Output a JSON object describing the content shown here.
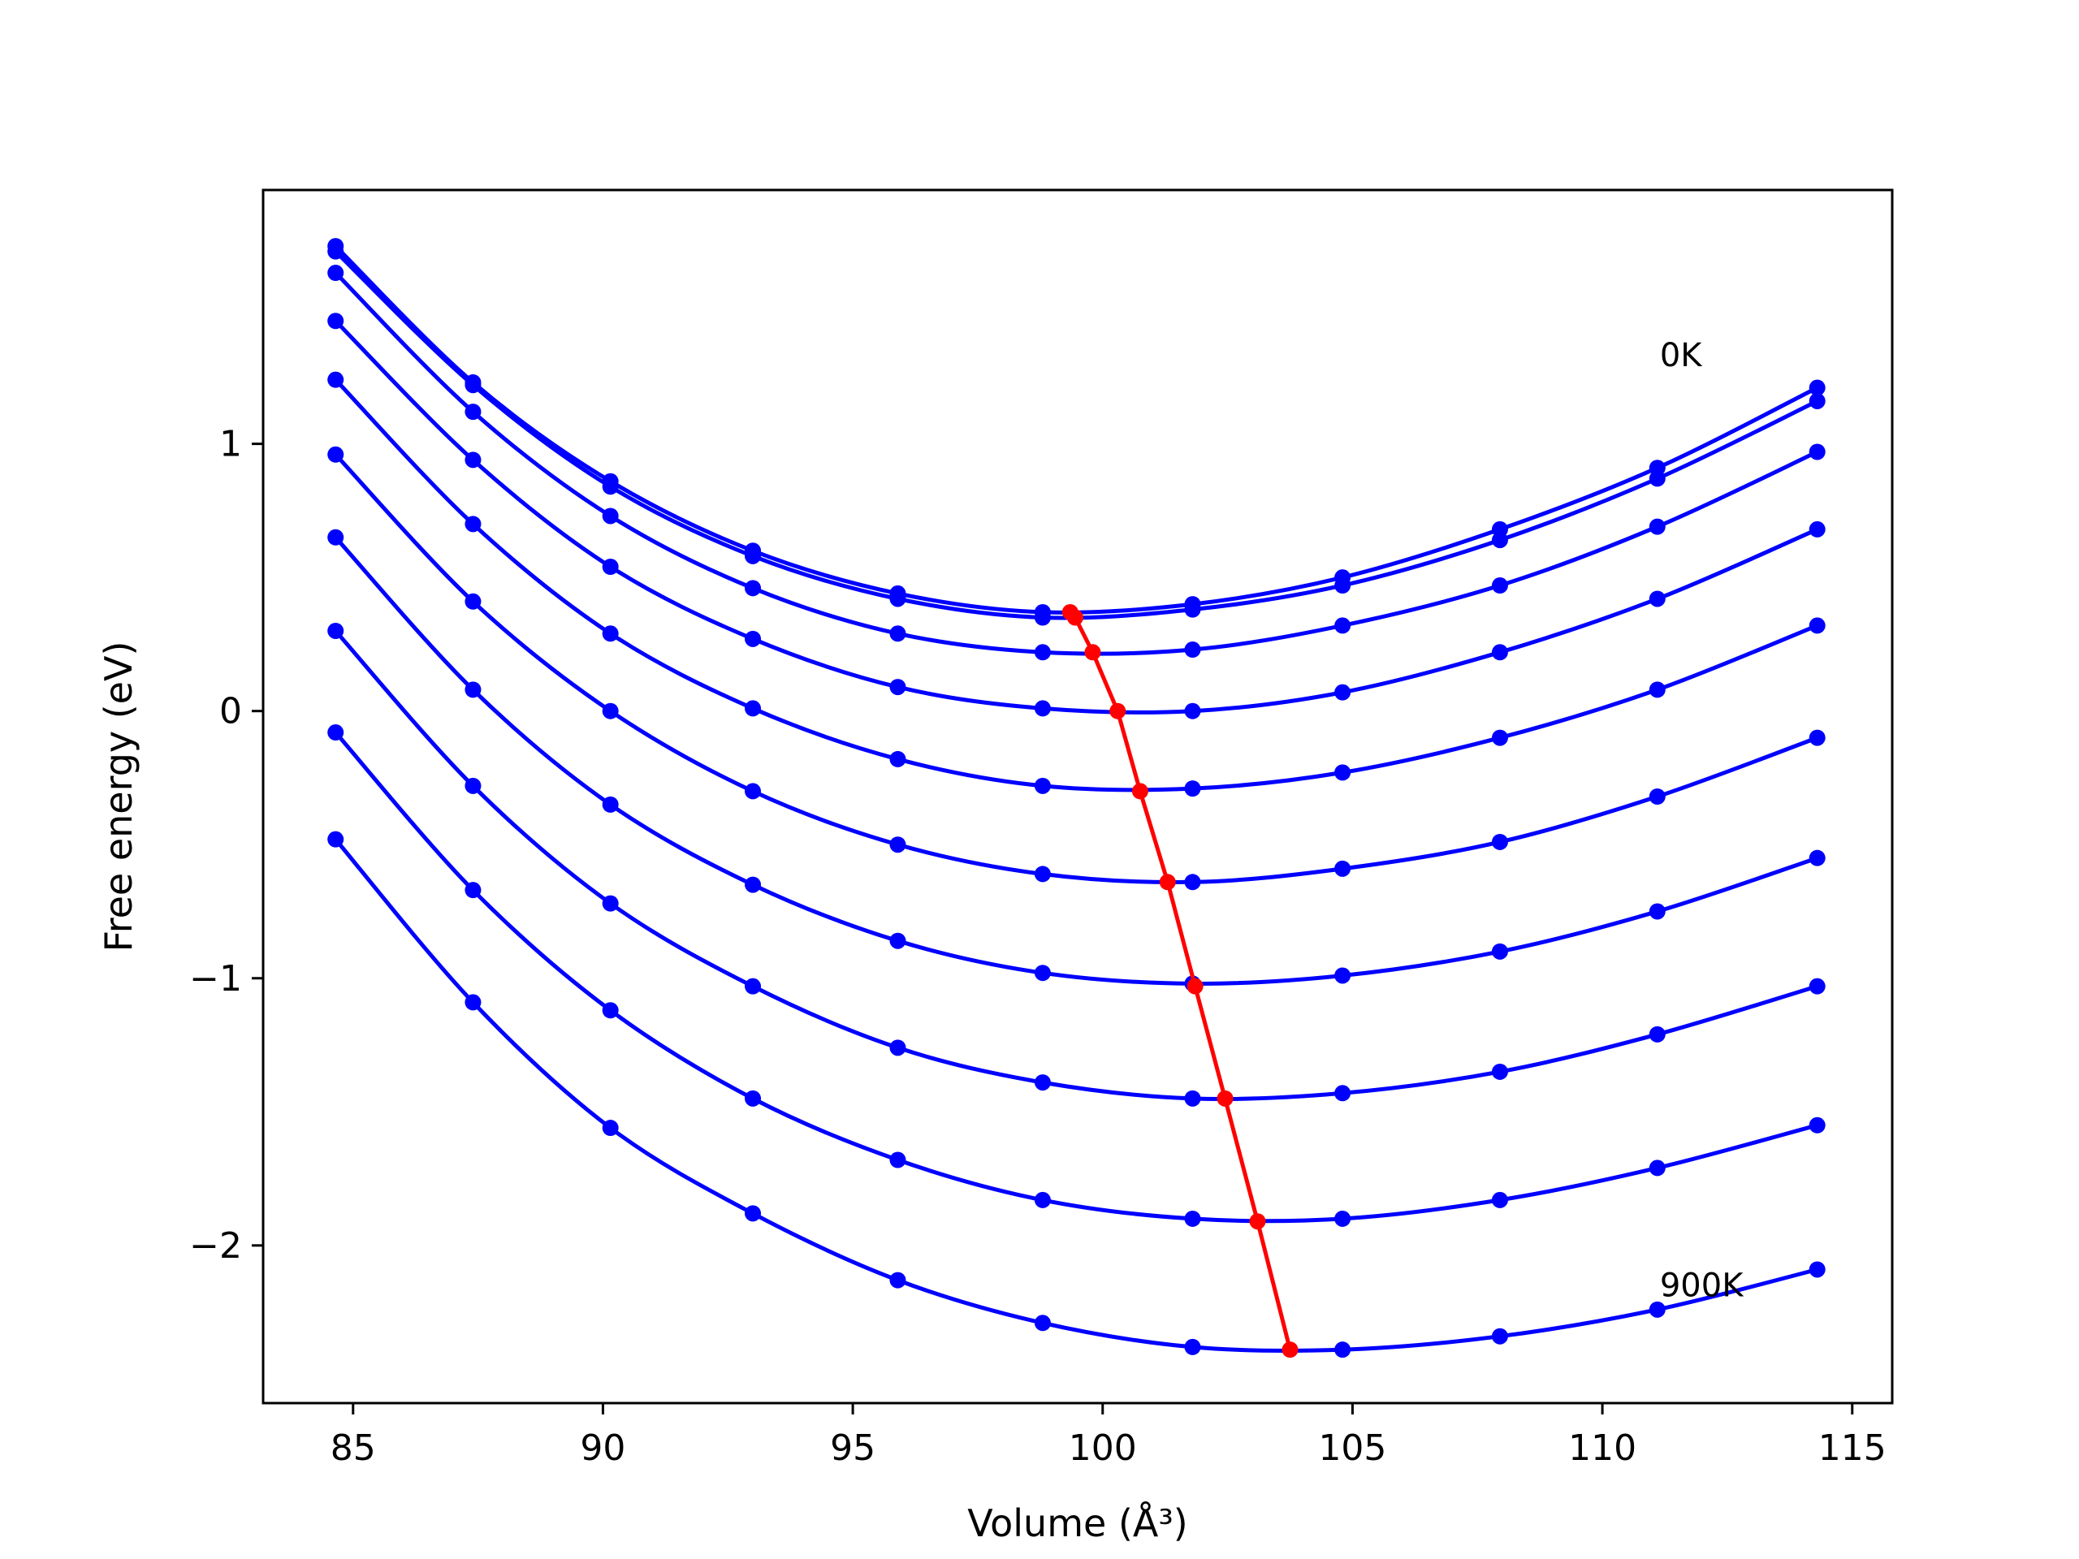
{
  "chart_data": {
    "type": "line",
    "xlabel": "Volume (Å³)",
    "ylabel": "Free energy (eV)",
    "xlim": [
      83.2,
      115.8
    ],
    "ylim": [
      -2.59,
      1.95
    ],
    "xticks": [
      85,
      90,
      95,
      100,
      105,
      110,
      115
    ],
    "xtick_labels": [
      "85",
      "90",
      "95",
      "100",
      "105",
      "110",
      "115"
    ],
    "yticks": [
      1,
      0,
      -1,
      -2
    ],
    "ytick_labels": [
      "1",
      "0",
      "−1",
      "−2"
    ],
    "grid": false,
    "x": [
      84.65,
      87.4,
      90.15,
      93.0,
      95.9,
      98.8,
      101.8,
      104.8,
      107.95,
      111.1,
      114.3
    ],
    "series": [
      {
        "color": "#0000ff",
        "values": [
          1.74,
          1.23,
          0.86,
          0.6,
          0.44,
          0.37,
          0.4,
          0.5,
          0.68,
          0.91,
          1.21
        ]
      },
      {
        "color": "#0000ff",
        "values": [
          1.72,
          1.22,
          0.84,
          0.58,
          0.42,
          0.35,
          0.38,
          0.47,
          0.64,
          0.87,
          1.16
        ]
      },
      {
        "color": "#0000ff",
        "values": [
          1.64,
          1.12,
          0.73,
          0.46,
          0.29,
          0.22,
          0.23,
          0.32,
          0.47,
          0.69,
          0.97
        ]
      },
      {
        "color": "#0000ff",
        "values": [
          1.46,
          0.94,
          0.54,
          0.27,
          0.09,
          0.01,
          0.0,
          0.07,
          0.22,
          0.42,
          0.68
        ]
      },
      {
        "color": "#0000ff",
        "values": [
          1.24,
          0.7,
          0.29,
          0.01,
          -0.18,
          -0.28,
          -0.29,
          -0.23,
          -0.1,
          0.08,
          0.32
        ]
      },
      {
        "color": "#0000ff",
        "values": [
          0.96,
          0.41,
          0.0,
          -0.3,
          -0.5,
          -0.61,
          -0.64,
          -0.59,
          -0.49,
          -0.32,
          -0.1
        ]
      },
      {
        "color": "#0000ff",
        "values": [
          0.65,
          0.08,
          -0.35,
          -0.65,
          -0.86,
          -0.98,
          -1.02,
          -0.99,
          -0.9,
          -0.75,
          -0.55
        ]
      },
      {
        "color": "#0000ff",
        "values": [
          0.3,
          -0.28,
          -0.72,
          -1.03,
          -1.26,
          -1.39,
          -1.45,
          -1.43,
          -1.35,
          -1.21,
          -1.03
        ]
      },
      {
        "color": "#0000ff",
        "values": [
          -0.08,
          -0.67,
          -1.12,
          -1.45,
          -1.68,
          -1.83,
          -1.9,
          -1.9,
          -1.83,
          -1.71,
          -1.55
        ]
      },
      {
        "color": "#0000ff",
        "values": [
          -0.48,
          -1.09,
          -1.56,
          -1.88,
          -2.13,
          -2.29,
          -2.38,
          -2.39,
          -2.34,
          -2.24,
          -2.09
        ]
      }
    ],
    "minima": {
      "color": "#ff0000",
      "x": [
        99.35,
        99.45,
        99.8,
        100.3,
        100.75,
        101.3,
        101.85,
        102.45,
        103.1,
        103.75
      ],
      "y": [
        0.37,
        0.35,
        0.22,
        0.0,
        -0.3,
        -0.64,
        -1.03,
        -1.45,
        -1.91,
        -2.39
      ]
    },
    "annotations": [
      {
        "text": "0K",
        "x": 111.15,
        "y": 1.29
      },
      {
        "text": "900K",
        "x": 111.15,
        "y": -2.19
      }
    ]
  }
}
